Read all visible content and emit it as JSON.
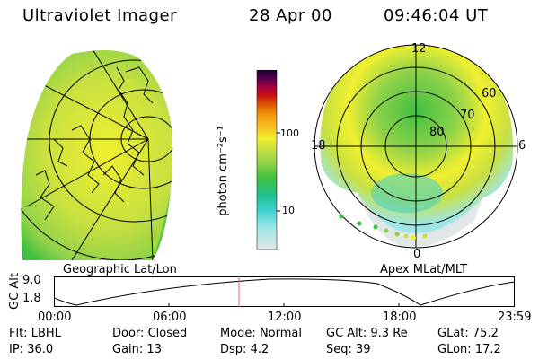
{
  "header": {
    "title": "Ultraviolet Imager",
    "date": "28 Apr 00",
    "time": "09:46:04 UT"
  },
  "colors": {
    "palette": [
      "#dfe4e6",
      "#9fe6e6",
      "#3fd0d0",
      "#1fc090",
      "#40c040",
      "#8fd24a",
      "#c8e040",
      "#f0f030",
      "#f5d020",
      "#f5a010",
      "#e06000",
      "#c81010",
      "#a00040",
      "#5a0050",
      "#1a0030"
    ],
    "orbit_marker": "#e06070"
  },
  "colorbar": {
    "unit_label": "photon cm⁻²s⁻¹",
    "ticks": [
      "100",
      "10"
    ]
  },
  "left_panel": {
    "caption": "Geographic Lat/Lon"
  },
  "right_panel": {
    "caption": "Apex MLat/MLT",
    "mlt_labels": {
      "top": "12",
      "left": "18",
      "right": "6",
      "bottom": "0"
    },
    "lat_labels": [
      "60",
      "70",
      "80"
    ]
  },
  "altitude_plot": {
    "ylabel": "GC Alt",
    "yticks": [
      "9.0",
      "1.8"
    ],
    "xticks": [
      "00:00",
      "06:00",
      "12:00",
      "18:00",
      "23:59"
    ]
  },
  "status": {
    "row1": [
      {
        "label": "Flt:",
        "value": "LBHL"
      },
      {
        "label": "Door:",
        "value": "Closed"
      },
      {
        "label": "Mode:",
        "value": "Normal"
      },
      {
        "label": "GC Alt:",
        "value": "9.3 Re"
      },
      {
        "label": "GLat:",
        "value": "75.2"
      }
    ],
    "row2": [
      {
        "label": "IP:",
        "value": "36.0"
      },
      {
        "label": "Gain:",
        "value": "13"
      },
      {
        "label": "Dsp:",
        "value": "4.2"
      },
      {
        "label": "Seq:",
        "value": "39"
      },
      {
        "label": "GLon:",
        "value": "17.2"
      }
    ]
  }
}
